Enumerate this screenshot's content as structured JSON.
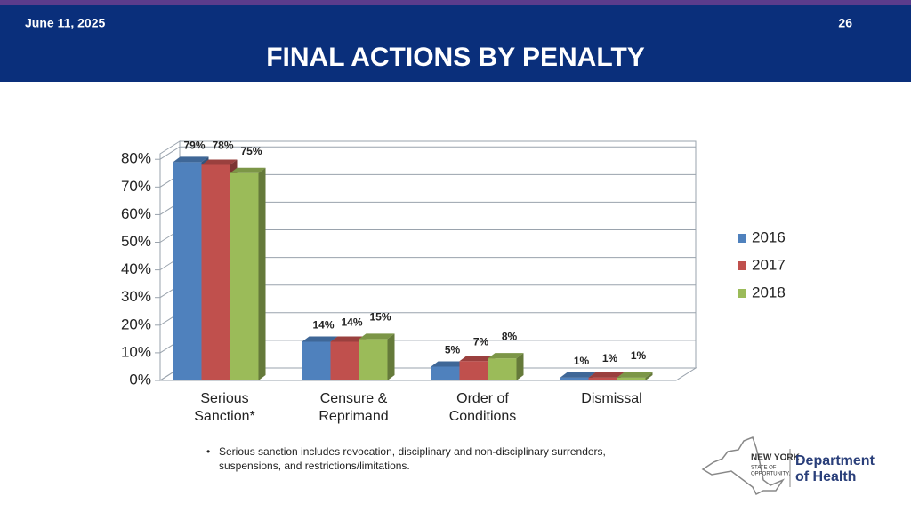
{
  "header": {
    "date": "June 11, 2025",
    "page": "26",
    "title": "FINAL ACTIONS BY PENALTY"
  },
  "footnote": "Serious sanction includes revocation, disciplinary and non-disciplinary surrenders, suspensions, and restrictions/limitations.",
  "logo": {
    "state": "NEW YORK",
    "tag1": "STATE OF",
    "tag2": "OPPORTUNITY.",
    "dept1": "Department",
    "dept2": "of Health"
  },
  "chart_data": {
    "type": "bar3d",
    "categories": [
      "Serious Sanction*",
      "Censure & Reprimand",
      "Order of Conditions",
      "Dismissal"
    ],
    "series": [
      {
        "name": "2016",
        "color": "#4f81bd",
        "values": [
          79,
          14,
          5,
          1
        ],
        "value_labels": [
          "79%",
          "14%",
          "5%",
          "1%"
        ]
      },
      {
        "name": "2017",
        "color": "#c0504d",
        "values": [
          78,
          14,
          7,
          1
        ],
        "value_labels": [
          "78%",
          "14%",
          "7%",
          "1%"
        ]
      },
      {
        "name": "2018",
        "color": "#9bbb59",
        "values": [
          75,
          15,
          8,
          1
        ],
        "value_labels": [
          "75%",
          "15%",
          "8%",
          "1%"
        ]
      }
    ],
    "ylim": [
      0,
      82
    ],
    "yticks": [
      {
        "value": 0,
        "label": "0%"
      },
      {
        "value": 10,
        "label": "10%"
      },
      {
        "value": 20,
        "label": "20%"
      },
      {
        "value": 30,
        "label": "30%"
      },
      {
        "value": 40,
        "label": "40%"
      },
      {
        "value": 50,
        "label": "50%"
      },
      {
        "value": 60,
        "label": "60%"
      },
      {
        "value": 70,
        "label": "70%"
      },
      {
        "value": 80,
        "label": "80%"
      }
    ],
    "grid": true,
    "legend": "right"
  }
}
